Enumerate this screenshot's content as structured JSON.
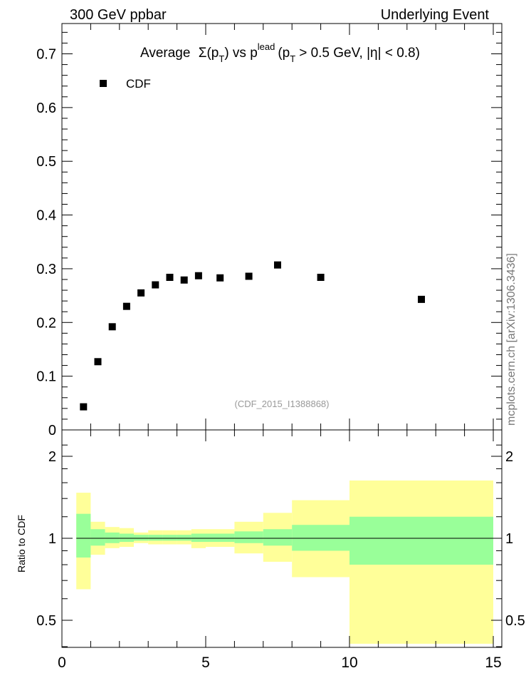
{
  "header": {
    "left": "300 GeV ppbar",
    "right": "Underlying Event"
  },
  "side_label": "mcplots.cern.ch [arXiv:1306.3436]",
  "watermark": "(CDF_2015_I1388868)",
  "chart_data": [
    {
      "type": "scatter",
      "title_parts": {
        "a": "Average",
        "sigma": "Σ(p",
        "sub_t": "T",
        "b": ") vs p",
        "sup_lead": "lead",
        "c": "(p",
        "d": "> 0.5 GeV, |η| < 0.8)"
      },
      "legend": [
        "CDF"
      ],
      "xlim": [
        0,
        15
      ],
      "ylim": [
        0,
        0.75
      ],
      "yticks": [
        "0",
        "0.1",
        "0.2",
        "0.3",
        "0.4",
        "0.5",
        "0.6",
        "0.7"
      ],
      "series": [
        {
          "name": "CDF",
          "x": [
            0.75,
            1.25,
            1.75,
            2.25,
            2.75,
            3.25,
            3.75,
            4.25,
            4.75,
            5.5,
            6.5,
            7.5,
            9.0,
            12.5
          ],
          "y": [
            0.043,
            0.127,
            0.192,
            0.23,
            0.255,
            0.27,
            0.284,
            0.279,
            0.287,
            0.283,
            0.286,
            0.307,
            0.284,
            0.243
          ]
        }
      ]
    },
    {
      "type": "area",
      "ylabel": "Ratio to CDF",
      "xlim": [
        0,
        15
      ],
      "ylim": [
        0.38,
        2.3
      ],
      "xticks": [
        "0",
        "5",
        "10",
        "15"
      ],
      "yticks": [
        "0.5",
        "1",
        "2"
      ],
      "bins": [
        [
          0.5,
          1.0
        ],
        [
          1.0,
          1.5
        ],
        [
          1.5,
          2.0
        ],
        [
          2.0,
          2.5
        ],
        [
          2.5,
          3.0
        ],
        [
          3.0,
          3.5
        ],
        [
          3.5,
          4.0
        ],
        [
          4.0,
          4.5
        ],
        [
          4.5,
          5.0
        ],
        [
          5.0,
          6.0
        ],
        [
          6.0,
          7.0
        ],
        [
          7.0,
          8.0
        ],
        [
          8.0,
          10.0
        ],
        [
          10.0,
          15.0
        ]
      ],
      "stat_band": [
        [
          0.85,
          1.23
        ],
        [
          0.94,
          1.08
        ],
        [
          0.96,
          1.05
        ],
        [
          0.97,
          1.04
        ],
        [
          0.98,
          1.03
        ],
        [
          0.98,
          1.03
        ],
        [
          0.98,
          1.03
        ],
        [
          0.98,
          1.03
        ],
        [
          0.97,
          1.04
        ],
        [
          0.97,
          1.04
        ],
        [
          0.96,
          1.06
        ],
        [
          0.94,
          1.08
        ],
        [
          0.9,
          1.12
        ],
        [
          0.8,
          1.2
        ]
      ],
      "syst_band": [
        [
          0.65,
          1.47
        ],
        [
          0.87,
          1.15
        ],
        [
          0.92,
          1.1
        ],
        [
          0.93,
          1.09
        ],
        [
          0.96,
          1.05
        ],
        [
          0.95,
          1.07
        ],
        [
          0.95,
          1.07
        ],
        [
          0.95,
          1.07
        ],
        [
          0.92,
          1.08
        ],
        [
          0.93,
          1.08
        ],
        [
          0.88,
          1.15
        ],
        [
          0.82,
          1.24
        ],
        [
          0.72,
          1.38
        ],
        [
          0.41,
          1.63
        ]
      ],
      "colors": {
        "syst": "#ffff99",
        "stat": "#99ff99",
        "marker": "#000000"
      }
    }
  ]
}
